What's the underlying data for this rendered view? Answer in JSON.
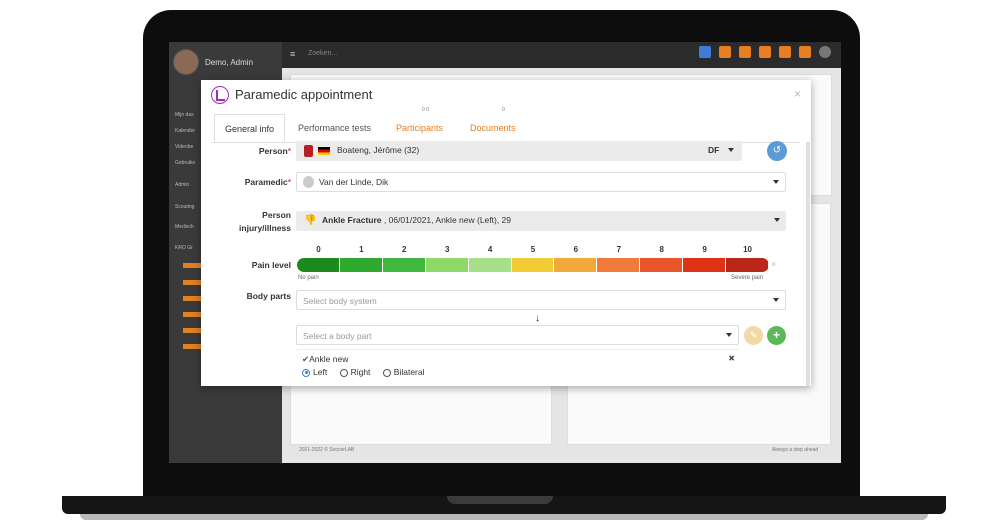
{
  "app": {
    "user_name": "Demo, Admin",
    "search_placeholder": "Zoeken...",
    "sidebar_items": [
      "Mijn das",
      "Kalender",
      "Videobe",
      "Gebruiko",
      "Admin",
      "Scouting",
      "Medisch",
      "KRO Gr"
    ],
    "footer": "2021-2022 © SoccerLAB",
    "footer_right": "Always a step ahead"
  },
  "dialog": {
    "title": "Paramedic appointment",
    "close_icon": "×",
    "tabs": [
      {
        "label": "General info",
        "active": true
      },
      {
        "label": "Performance tests"
      },
      {
        "label": "Participants",
        "count": "0 0"
      },
      {
        "label": "Documents",
        "count": "0"
      }
    ],
    "person": {
      "label": "Person",
      "value": "Boateng, Jérôme (32)",
      "position": "DF"
    },
    "paramedic": {
      "label": "Paramedic",
      "value": "Van der Linde, Dik"
    },
    "injury": {
      "label_line1": "Person",
      "label_line2": "injury/illness",
      "value_bold": "Ankle Fracture",
      "value_rest": " , 06/01/2021, Ankle new (Left), 29"
    },
    "pain": {
      "label": "Pain level",
      "scale": [
        "0",
        "1",
        "2",
        "3",
        "4",
        "5",
        "6",
        "7",
        "8",
        "9",
        "10"
      ],
      "colors": [
        "#1e8a1e",
        "#2ea82e",
        "#40b840",
        "#8fd96a",
        "#a8e08a",
        "#f2cc35",
        "#f2a93a",
        "#ef7a3a",
        "#e8552a",
        "#df3318",
        "#b8271a"
      ],
      "min_label": "No pain",
      "max_label": "Severe pain",
      "clear_icon": "×"
    },
    "body_parts": {
      "label": "Body parts",
      "system_placeholder": "Select body system",
      "part_placeholder": "Select a body part",
      "selected": "Ankle new",
      "remove_icon": "✖",
      "sides": [
        "Left",
        "Right",
        "Bilateral"
      ],
      "selected_side": "Left"
    }
  }
}
